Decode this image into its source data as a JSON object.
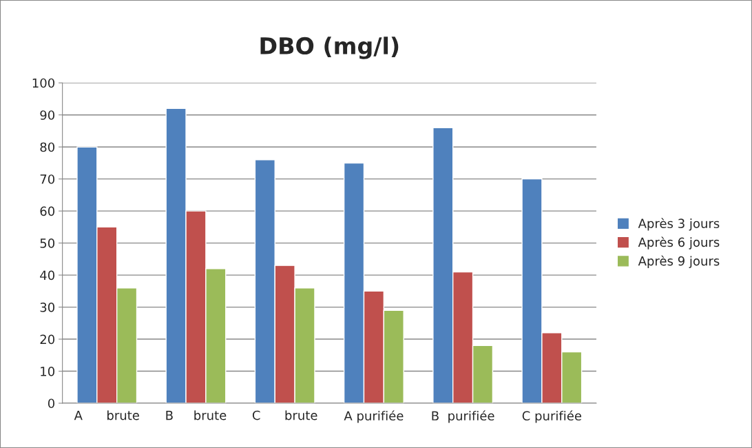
{
  "chart_data": {
    "type": "bar",
    "title": "DBO (mg/l)",
    "categories": [
      "A      brute",
      "B     brute",
      "C      brute",
      "A purifiée",
      "B  purifiée",
      "C purifiée"
    ],
    "series": [
      {
        "name": "Après 3 jours",
        "color": "#4f81bd",
        "values": [
          80,
          92,
          76,
          75,
          86,
          70
        ]
      },
      {
        "name": "Après 6 jours",
        "color": "#c0504d",
        "values": [
          55,
          60,
          43,
          35,
          41,
          22
        ]
      },
      {
        "name": "Après 9 jours",
        "color": "#9bbb59",
        "values": [
          36,
          42,
          36,
          29,
          18,
          16
        ]
      }
    ],
    "ylim": [
      0,
      100
    ],
    "yticks": [
      0,
      10,
      20,
      30,
      40,
      50,
      60,
      70,
      80,
      90,
      100
    ],
    "grid": "y",
    "legend": "right"
  }
}
